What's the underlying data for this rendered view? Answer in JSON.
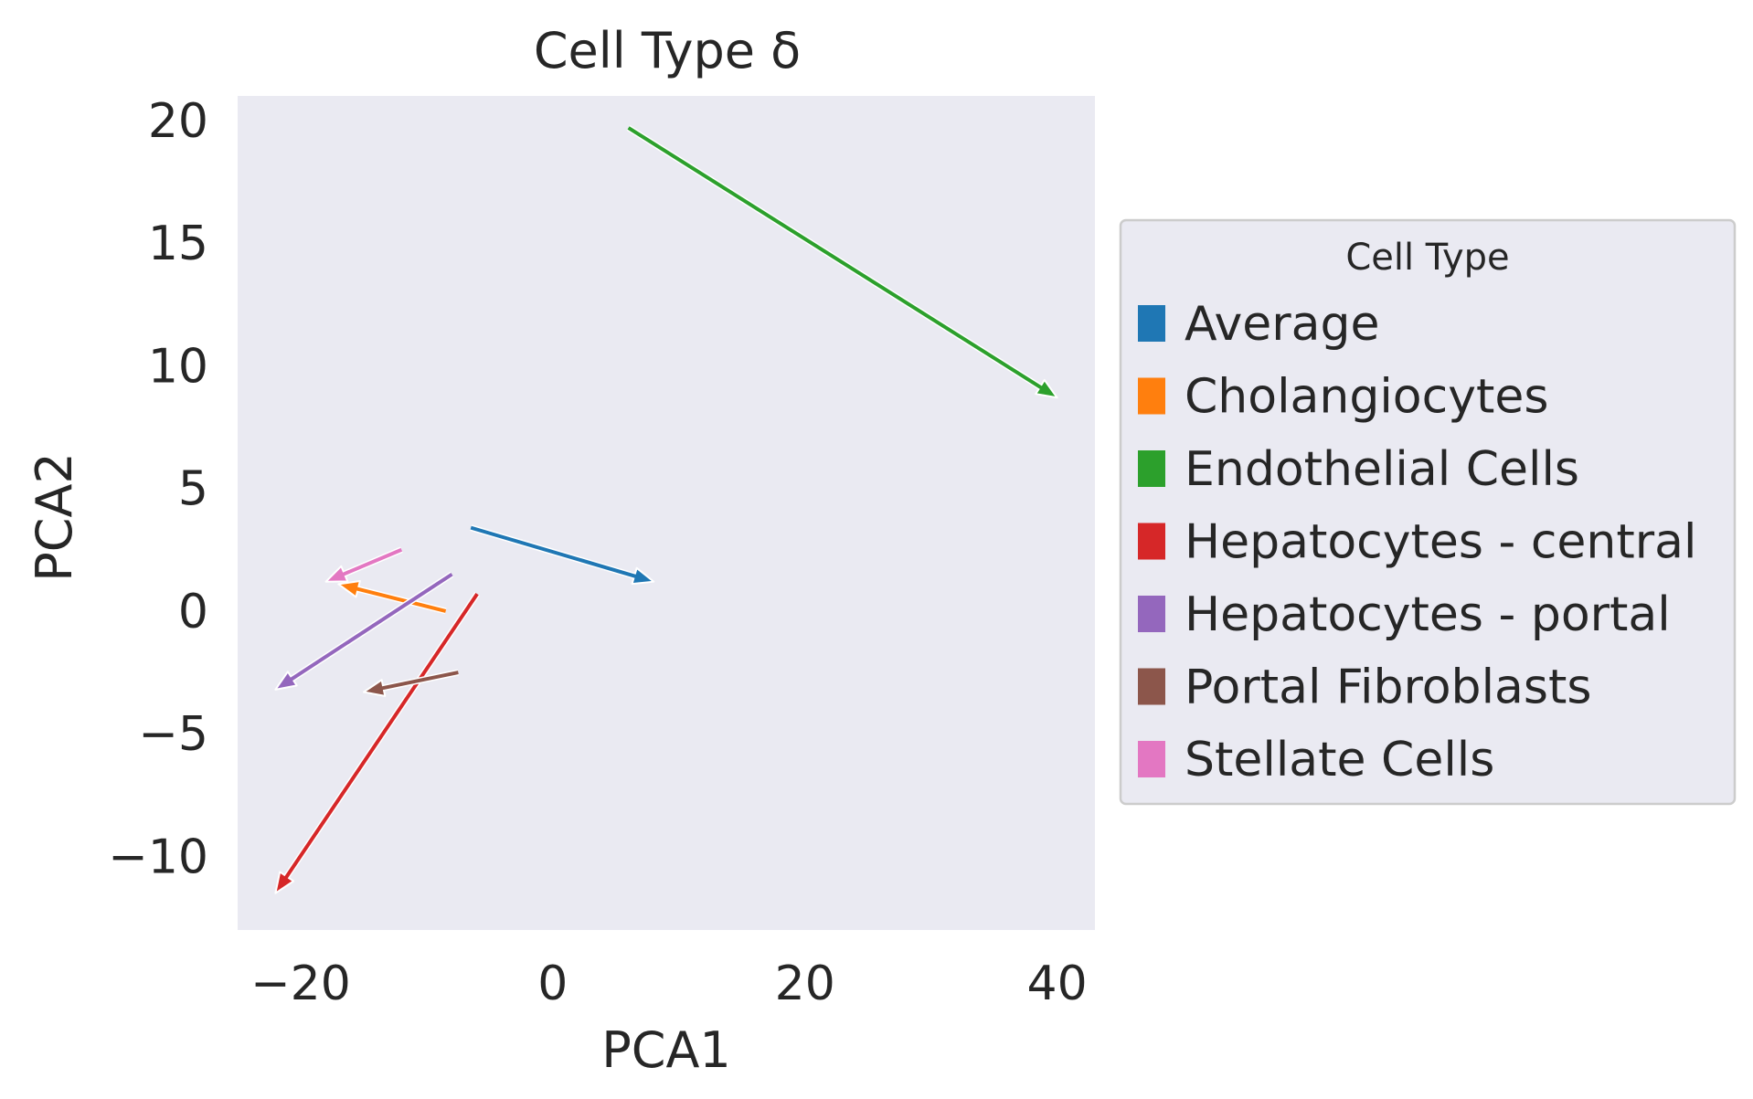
{
  "chart_data": {
    "type": "quiver",
    "title": "Cell Type δ",
    "xlabel": "PCA1",
    "ylabel": "PCA2",
    "xlim": [
      -25,
      43
    ],
    "ylim": [
      -13,
      21
    ],
    "xticks": [
      -20,
      0,
      20,
      40
    ],
    "yticks": [
      -10,
      -5,
      0,
      5,
      10,
      15,
      20
    ],
    "xtick_labels": [
      "−20",
      "0",
      "20",
      "40"
    ],
    "ytick_labels": [
      "−10",
      "−5",
      "0",
      "5",
      "10",
      "15",
      "20"
    ],
    "grid": false,
    "background": "#eaeaf2",
    "legend": {
      "title": "Cell Type",
      "placement": "outside-right"
    },
    "series": [
      {
        "name": "Average",
        "color": "#1f77b4",
        "x0": -6.5,
        "y0": 3.4,
        "x1": 8,
        "y1": 1.2
      },
      {
        "name": "Cholangiocytes",
        "color": "#ff7f0e",
        "x0": -8.5,
        "y0": 0.0,
        "x1": -17,
        "y1": 1.1
      },
      {
        "name": "Endothelial Cells",
        "color": "#2ca02c",
        "x0": 6,
        "y0": 19.7,
        "x1": 40,
        "y1": 8.7
      },
      {
        "name": "Hepatocytes - central",
        "color": "#d62728",
        "x0": -6,
        "y0": 0.7,
        "x1": -22,
        "y1": -11.5
      },
      {
        "name": "Hepatocytes - portal",
        "color": "#9467bd",
        "x0": -8,
        "y0": 1.5,
        "x1": -22,
        "y1": -3.2
      },
      {
        "name": "Portal Fibroblasts",
        "color": "#8c564b",
        "x0": -7.5,
        "y0": -2.5,
        "x1": -15,
        "y1": -3.3
      },
      {
        "name": "Stellate Cells",
        "color": "#e377c2",
        "x0": -12,
        "y0": 2.5,
        "x1": -18,
        "y1": 1.2
      }
    ]
  }
}
